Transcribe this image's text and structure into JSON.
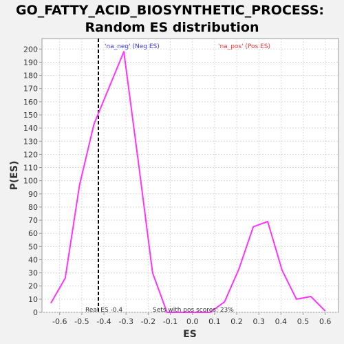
{
  "chart_data": {
    "type": "line",
    "title_line1": "GO_FATTY_ACID_BIOSYNTHETIC_PROCESS:",
    "title_line2": "Random ES distribution",
    "xlabel": "ES",
    "ylabel": "P(ES)",
    "xlim": [
      -0.68,
      0.66
    ],
    "ylim": [
      0,
      208
    ],
    "xticks": [
      -0.6,
      -0.5,
      -0.4,
      -0.3,
      -0.2,
      -0.1,
      0.0,
      0.1,
      0.2,
      0.3,
      0.4,
      0.5,
      0.6
    ],
    "xtick_labels": [
      "-0.6",
      "-0.5",
      "-0.4",
      "-0.3",
      "-0.2",
      "-0.1",
      "0.0",
      "0.1",
      "0.2",
      "0.3",
      "0.4",
      "0.5",
      "0.6"
    ],
    "yticks": [
      0,
      10,
      20,
      30,
      40,
      50,
      60,
      70,
      80,
      90,
      100,
      110,
      120,
      130,
      140,
      150,
      160,
      170,
      180,
      190,
      200
    ],
    "grid": true,
    "series": [
      {
        "color": "#ff33ff",
        "x": [
          -0.64,
          -0.575,
          -0.51,
          -0.445,
          -0.31,
          -0.245,
          -0.18,
          -0.115,
          -0.05,
          0.015,
          0.08,
          0.145,
          0.21,
          0.275,
          0.34,
          0.405,
          0.47,
          0.535,
          0.6
        ],
        "y": [
          7,
          26,
          97,
          143,
          198,
          115,
          30,
          0,
          0,
          0,
          0,
          8,
          33,
          65,
          69,
          32,
          10,
          12,
          1
        ]
      }
    ],
    "real_es": -0.4,
    "real_es_x": -0.425,
    "annotations": {
      "neg_label": "'na_neg' (Neg ES)",
      "neg_color": "#3333ff",
      "pos_label": "'na_pos' (Pos ES)",
      "pos_color": "#ff3333",
      "real_es_label": "Real ES -0.4",
      "sets_label": "Sets with pos scores: 23%"
    }
  }
}
